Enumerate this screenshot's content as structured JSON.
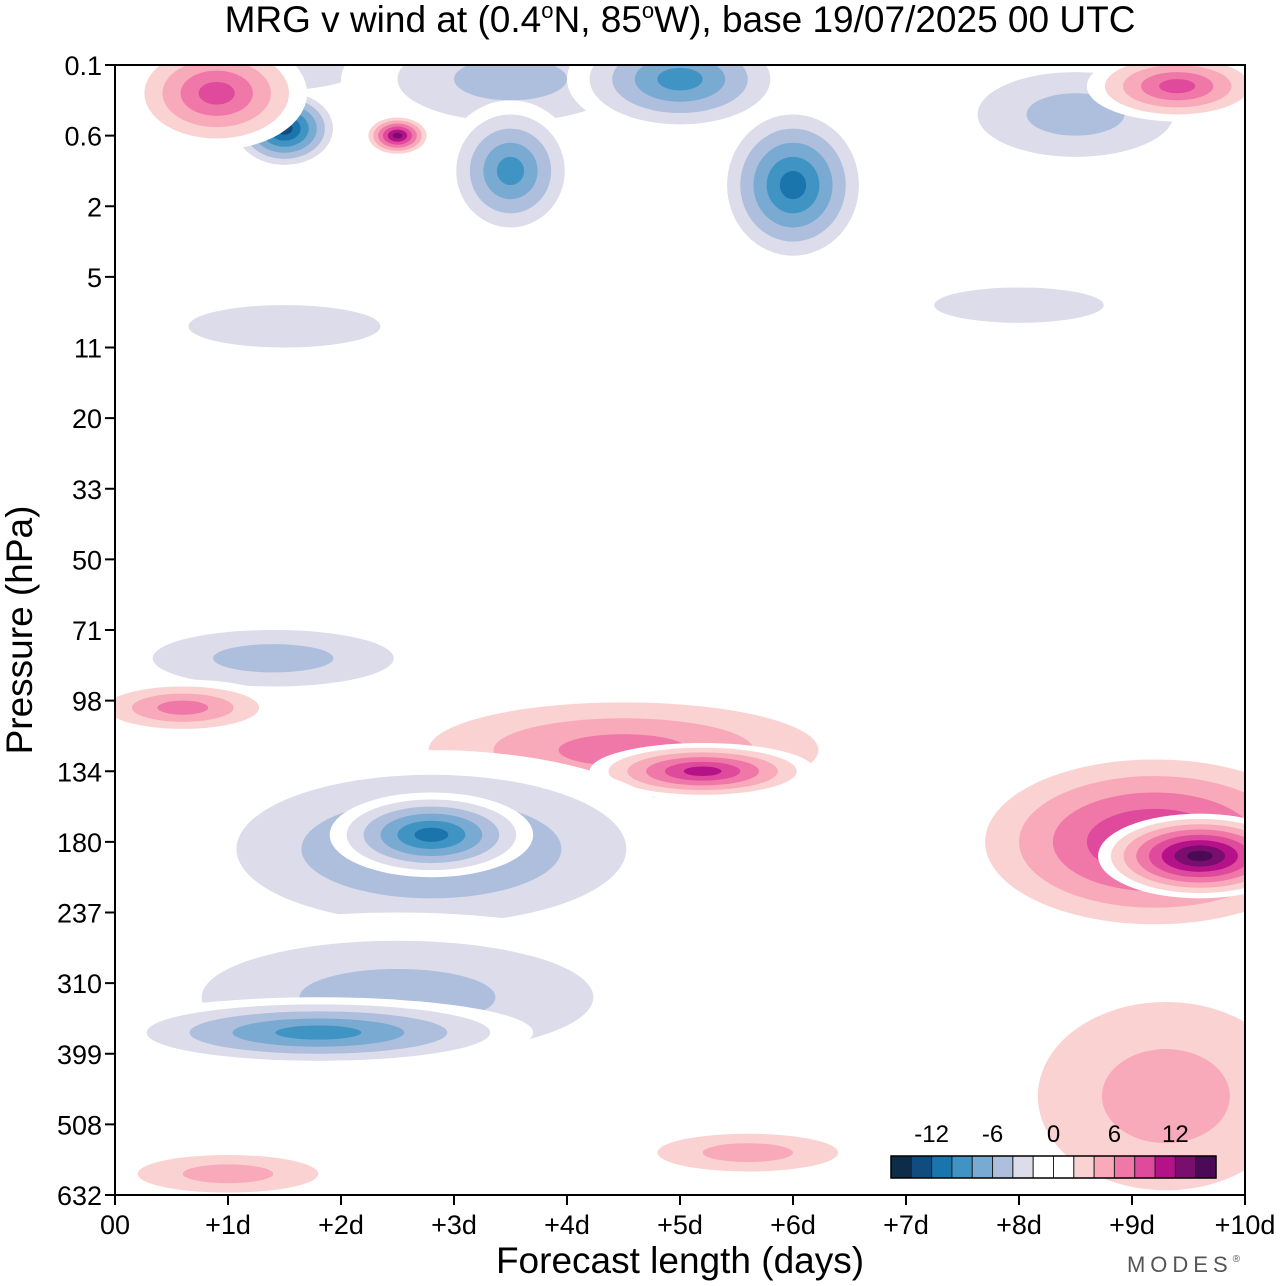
{
  "chart_data": {
    "type": "heatmap",
    "title_prefix": "MRG v wind at (0.4",
    "title_lat": "N, 85",
    "title_suffix": "W),  base 19/07/2025  00 UTC",
    "degree_symbol": "o",
    "xlabel": "Forecast length (days)",
    "ylabel": "Pressure (hPa)",
    "x_ticks": [
      "00",
      "+1d",
      "+2d",
      "+3d",
      "+4d",
      "+5d",
      "+6d",
      "+7d",
      "+8d",
      "+9d",
      "+10d"
    ],
    "y_ticks": [
      "0.1",
      "0.6",
      "2",
      "5",
      "11",
      "20",
      "33",
      "50",
      "71",
      "98",
      "134",
      "180",
      "237",
      "310",
      "399",
      "508",
      "632"
    ],
    "xlim": [
      0,
      10
    ],
    "colorbar": {
      "tick_labels": [
        "-12",
        "-6",
        "0",
        "6",
        "12"
      ],
      "tick_values": [
        -12,
        -6,
        0,
        6,
        12
      ],
      "range": [
        -16,
        16
      ],
      "colors": [
        "#0d2c4a",
        "#104d7e",
        "#1b75ad",
        "#3f94c4",
        "#79aad1",
        "#adbfdd",
        "#dcdcea",
        "#ffffff",
        "#ffffff",
        "#fbd2d2",
        "#f8aabb",
        "#ef78a8",
        "#e04a9c",
        "#b5128a",
        "#7a0e6f",
        "#4a0a57"
      ]
    },
    "regions": [
      {
        "x": 1.5,
        "lev": 16,
        "rx": 1.4,
        "ry": 0.7,
        "value": -3
      },
      {
        "x": 3.5,
        "lev": 15.8,
        "rx": 1.5,
        "ry": 0.9,
        "value": -6
      },
      {
        "x": 5,
        "lev": 15.8,
        "rx": 1.0,
        "ry": 0.8,
        "value": -9
      },
      {
        "x": 1.5,
        "lev": 15.1,
        "rx": 0.5,
        "ry": 0.6,
        "value": -13
      },
      {
        "x": 0.9,
        "lev": 15.6,
        "rx": 0.8,
        "ry": 0.8,
        "value": 9
      },
      {
        "x": 2.5,
        "lev": 15,
        "rx": 0.3,
        "ry": 0.3,
        "value": 13
      },
      {
        "x": 3.5,
        "lev": 14.5,
        "rx": 0.6,
        "ry": 1.0,
        "value": -10
      },
      {
        "x": 6,
        "lev": 14.3,
        "rx": 0.7,
        "ry": 1.2,
        "value": -11
      },
      {
        "x": 8.5,
        "lev": 15.3,
        "rx": 1.3,
        "ry": 0.9,
        "value": -6
      },
      {
        "x": 9.4,
        "lev": 15.7,
        "rx": 0.8,
        "ry": 0.5,
        "value": 9
      },
      {
        "x": 1.5,
        "lev": 12.3,
        "rx": 1.7,
        "ry": 0.6,
        "value": -4
      },
      {
        "x": 8,
        "lev": 12.6,
        "rx": 1.5,
        "ry": 0.5,
        "value": -3
      },
      {
        "x": 1.4,
        "lev": 7.6,
        "rx": 1.6,
        "ry": 0.6,
        "value": -6
      },
      {
        "x": 0.6,
        "lev": 6.9,
        "rx": 0.9,
        "ry": 0.4,
        "value": 7
      },
      {
        "x": 4.5,
        "lev": 6.3,
        "rx": 2.3,
        "ry": 0.9,
        "value": 7
      },
      {
        "x": 5.2,
        "lev": 6.0,
        "rx": 1.0,
        "ry": 0.4,
        "value": 11
      },
      {
        "x": 9.2,
        "lev": 5.0,
        "rx": 1.8,
        "ry": 1.4,
        "value": 11
      },
      {
        "x": 9.6,
        "lev": 4.8,
        "rx": 0.9,
        "ry": 0.6,
        "value": 15
      },
      {
        "x": 2.8,
        "lev": 4.9,
        "rx": 2.3,
        "ry": 1.4,
        "value": -8
      },
      {
        "x": 2.8,
        "lev": 5.1,
        "rx": 0.9,
        "ry": 0.6,
        "value": -12
      },
      {
        "x": 2.5,
        "lev": 2.8,
        "rx": 2.6,
        "ry": 1.2,
        "value": -6
      },
      {
        "x": 1.8,
        "lev": 2.3,
        "rx": 1.9,
        "ry": 0.5,
        "value": -9
      },
      {
        "x": 9.3,
        "lev": 1.4,
        "rx": 1.7,
        "ry": 2.0,
        "value": 6
      },
      {
        "x": 1.0,
        "lev": 0.3,
        "rx": 1.2,
        "ry": 0.4,
        "value": 6
      },
      {
        "x": 5.6,
        "lev": 0.6,
        "rx": 1.2,
        "ry": 0.4,
        "value": 5
      }
    ]
  },
  "branding": {
    "text": "MODES",
    "mark": "®"
  }
}
